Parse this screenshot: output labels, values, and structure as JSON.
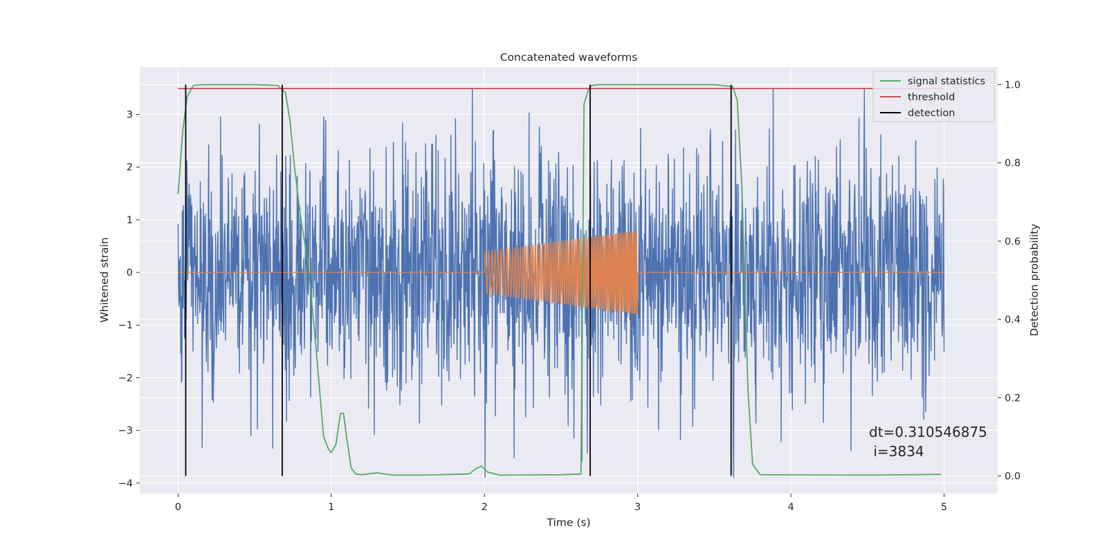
{
  "chart_data": {
    "type": "line",
    "title": "Concatenated waveforms",
    "xlabel": "Time (s)",
    "ylabel_left": "Whitened strain",
    "ylabel_right": "Detection probability",
    "xlim": [
      -0.25,
      5.35
    ],
    "ylim_left": [
      -4.2,
      3.9
    ],
    "ylim_right": [
      -0.045,
      1.045
    ],
    "x_ticks": [
      0,
      1,
      2,
      3,
      4,
      5
    ],
    "x_tick_labels": [
      "0",
      "1",
      "2",
      "3",
      "4",
      "5"
    ],
    "y_ticks_left": [
      3,
      2,
      1,
      0,
      -1,
      -2,
      -3,
      -4
    ],
    "y_tick_labels_left": [
      "3",
      "2",
      "1",
      "0",
      "−1",
      "−2",
      "−3",
      "−4"
    ],
    "y_ticks_right": [
      1.0,
      0.8,
      0.6,
      0.4,
      0.2,
      0.0
    ],
    "y_tick_labels_right": [
      "1.0",
      "0.8",
      "0.6",
      "0.4",
      "0.2",
      "0.0"
    ],
    "grid": true,
    "legend": {
      "position": "top-right",
      "entries": [
        {
          "label": "signal statistics",
          "color": "#55a868"
        },
        {
          "label": "threshold",
          "color": "#c44e52"
        },
        {
          "label": "detection",
          "color": "#000000"
        }
      ]
    },
    "annotation": {
      "line1": "dt=0.310546875",
      "line2": " i=3834"
    },
    "series": [
      {
        "name": "noise strain",
        "axis": "left",
        "color": "#4c72b0",
        "x_range": [
          0,
          5
        ],
        "points": 2000,
        "envelope": {
          "typical_abs": 1.3,
          "max": 3.5,
          "min": -3.9
        }
      },
      {
        "name": "injected signal",
        "axis": "left",
        "color": "#dd8452",
        "x_range": [
          0,
          5
        ],
        "chirp": {
          "start": 2.0,
          "end": 3.0,
          "amp_start": 0.4,
          "amp_end": 0.8
        }
      },
      {
        "name": "signal statistics",
        "axis": "right",
        "color": "#55a868",
        "x": [
          0,
          0.03,
          0.06,
          0.1,
          0.15,
          0.3,
          0.5,
          0.65,
          0.7,
          0.73,
          0.76,
          0.8,
          0.85,
          0.9,
          0.95,
          0.98,
          1.0,
          1.03,
          1.06,
          1.08,
          1.1,
          1.13,
          1.16,
          1.2,
          1.3,
          1.4,
          1.6,
          1.9,
          1.95,
          1.98,
          2.02,
          2.1,
          2.5,
          2.63,
          2.65,
          2.68,
          2.7,
          2.75,
          3.0,
          3.5,
          3.62,
          3.65,
          3.68,
          3.72,
          3.75,
          3.8,
          4.5,
          4.98
        ],
        "y": [
          0.72,
          0.88,
          0.97,
          0.998,
          1.0,
          1.0,
          1.0,
          0.998,
          0.98,
          0.91,
          0.79,
          0.66,
          0.54,
          0.33,
          0.1,
          0.07,
          0.06,
          0.08,
          0.16,
          0.16,
          0.1,
          0.02,
          0.005,
          0.003,
          0.008,
          0.002,
          0.002,
          0.005,
          0.02,
          0.025,
          0.01,
          0.002,
          0.003,
          0.005,
          0.95,
          0.99,
          0.998,
          1.0,
          1.0,
          1.0,
          0.995,
          0.96,
          0.74,
          0.22,
          0.03,
          0.003,
          0.002,
          0.004
        ]
      },
      {
        "name": "threshold",
        "axis": "right",
        "color": "#c44e52",
        "x": [
          0,
          5
        ],
        "y": [
          0.99,
          0.99
        ]
      },
      {
        "name": "detection",
        "axis": "right",
        "color": "#000000",
        "type": "vlines",
        "x": [
          0.05,
          0.68,
          2.69,
          3.61
        ],
        "ymin": 0.0,
        "ymax": 1.0
      }
    ]
  }
}
